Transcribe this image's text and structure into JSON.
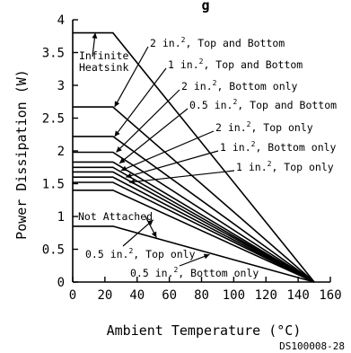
{
  "chart_data": {
    "type": "line",
    "title": "g",
    "xlabel": "Ambient Temperature (°C)",
    "ylabel": "Power Dissipation (W)",
    "xlim": [
      0,
      160
    ],
    "ylim": [
      0,
      4
    ],
    "xticks": [
      0,
      20,
      40,
      60,
      80,
      100,
      120,
      140,
      160
    ],
    "yticks": [
      0,
      0.5,
      1,
      1.5,
      2,
      2.5,
      3,
      3.5,
      4
    ],
    "grid": false,
    "series": [
      {
        "name": "Infinite Heatsink",
        "values": [
          [
            0,
            3.8
          ],
          [
            25,
            3.8
          ],
          [
            150,
            0
          ]
        ]
      },
      {
        "name": "2 in.2, Top and Bottom",
        "values": [
          [
            0,
            2.67
          ],
          [
            25,
            2.67
          ],
          [
            150,
            0
          ]
        ]
      },
      {
        "name": "1 in.2, Top and Bottom",
        "values": [
          [
            0,
            2.22
          ],
          [
            25,
            2.22
          ],
          [
            150,
            0
          ]
        ]
      },
      {
        "name": "2 in.2, Bottom only",
        "values": [
          [
            0,
            1.98
          ],
          [
            25,
            1.98
          ],
          [
            150,
            0
          ]
        ]
      },
      {
        "name": "0.5 in.2, Top and Bottom",
        "values": [
          [
            0,
            1.83
          ],
          [
            25,
            1.83
          ],
          [
            150,
            0
          ]
        ]
      },
      {
        "name": "2 in.2, Top only",
        "values": [
          [
            0,
            1.75
          ],
          [
            25,
            1.75
          ],
          [
            150,
            0
          ]
        ]
      },
      {
        "name": "1 in.2, Bottom only",
        "values": [
          [
            0,
            1.68
          ],
          [
            25,
            1.68
          ],
          [
            150,
            0
          ]
        ]
      },
      {
        "name": "1 in.2, Top only",
        "values": [
          [
            0,
            1.6
          ],
          [
            25,
            1.6
          ],
          [
            150,
            0
          ]
        ]
      },
      {
        "name": "0.5 in.2, Bottom only",
        "values": [
          [
            0,
            1.52
          ],
          [
            25,
            1.52
          ],
          [
            150,
            0
          ]
        ]
      },
      {
        "name": "0.5 in.2, Top only",
        "values": [
          [
            0,
            1.4
          ],
          [
            25,
            1.4
          ],
          [
            150,
            0
          ]
        ]
      },
      {
        "name": "Not Attached",
        "values": [
          [
            0,
            0.85
          ],
          [
            25,
            0.85
          ],
          [
            150,
            0
          ]
        ]
      }
    ],
    "doc_code": "DS100008-28"
  }
}
